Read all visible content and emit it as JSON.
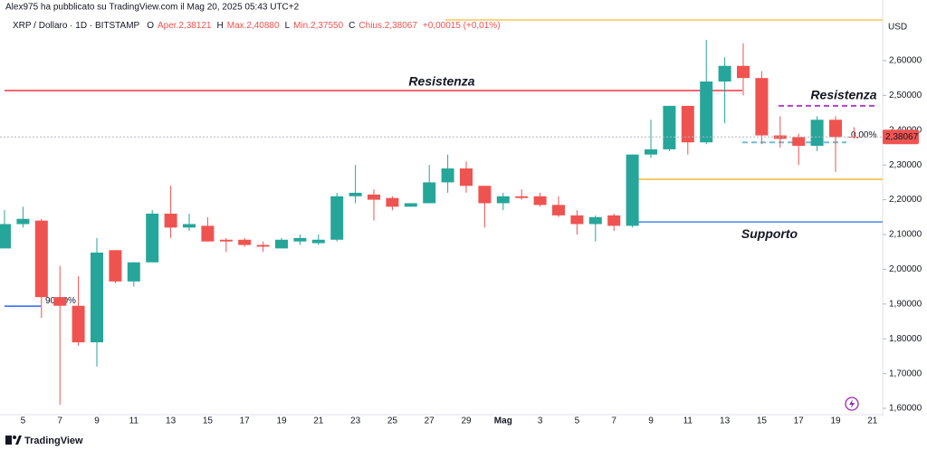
{
  "header": {
    "byline": "Alex975 ha pubblicato su TradingView.com il Mag 20, 2025 05:43 UTC+2",
    "symbol": "XRP / Dollaro · 1D · BITSTAMP",
    "open": "Aper.2,38121",
    "high": "Max.2,40880",
    "low": "Min.2,37550",
    "close": "Chius.2,38067",
    "change": "+0,00015 (+0,01%)",
    "o": "O",
    "h": "H",
    "l": "L",
    "c": "C"
  },
  "footer": {
    "brand": "TradingView"
  },
  "chart_data": {
    "type": "candlestick",
    "y_axis_label": "USD",
    "up_color": "#26a69a",
    "down_color": "#ef5350",
    "categories": [
      null,
      "5",
      null,
      "7",
      null,
      "9",
      null,
      "11",
      null,
      "13",
      null,
      "15",
      null,
      "17",
      null,
      "19",
      null,
      "21",
      null,
      "23",
      null,
      "25",
      null,
      "27",
      null,
      "29",
      null,
      "Mag",
      null,
      "3",
      null,
      "5",
      null,
      "7",
      null,
      "9",
      null,
      "11",
      null,
      "13",
      null,
      "15",
      null,
      "17",
      null,
      "19",
      null,
      "21"
    ],
    "open": [
      2.06,
      2.13,
      2.14,
      1.92,
      1.895,
      1.79,
      2.055,
      1.965,
      2.02,
      2.16,
      2.12,
      2.125,
      2.085,
      2.085,
      2.07,
      2.06,
      2.08,
      2.075,
      2.085,
      2.21,
      2.215,
      2.205,
      2.18,
      2.19,
      2.25,
      2.29,
      2.24,
      2.19,
      2.21,
      2.21,
      2.185,
      2.155,
      2.13,
      2.155,
      2.125,
      2.33,
      2.345,
      2.47,
      2.365,
      2.54,
      2.585,
      2.55,
      2.385,
      2.38,
      2.355,
      2.43,
      2.38121,
      null
    ],
    "high": [
      2.17,
      2.18,
      2.145,
      2.01,
      1.98,
      2.09,
      2.055,
      2.02,
      2.17,
      2.24,
      2.16,
      2.15,
      2.09,
      2.09,
      2.08,
      2.09,
      2.1,
      2.1,
      2.22,
      2.3,
      2.23,
      2.21,
      2.19,
      2.3,
      2.33,
      2.31,
      2.24,
      2.22,
      2.23,
      2.22,
      2.21,
      2.17,
      2.155,
      2.16,
      2.33,
      2.43,
      2.47,
      2.47,
      2.66,
      2.61,
      2.65,
      2.57,
      2.44,
      2.39,
      2.44,
      2.44,
      2.4088,
      null
    ],
    "low": [
      2.06,
      2.12,
      1.86,
      1.61,
      1.78,
      1.72,
      1.96,
      1.95,
      2.02,
      2.09,
      2.11,
      2.08,
      2.05,
      2.065,
      2.05,
      2.06,
      2.07,
      2.07,
      2.08,
      2.19,
      2.14,
      2.17,
      2.18,
      2.19,
      2.22,
      2.22,
      2.12,
      2.17,
      2.2,
      2.18,
      2.15,
      2.1,
      2.08,
      2.11,
      2.12,
      2.32,
      2.34,
      2.33,
      2.36,
      2.42,
      2.5,
      2.36,
      2.35,
      2.3,
      2.34,
      2.28,
      2.3755,
      null
    ],
    "close": [
      2.13,
      2.145,
      1.92,
      1.895,
      1.79,
      2.048,
      1.965,
      2.02,
      2.16,
      2.12,
      2.13,
      2.08,
      2.08,
      2.07,
      2.065,
      2.085,
      2.09,
      2.085,
      2.21,
      2.22,
      2.2,
      2.18,
      2.19,
      2.25,
      2.29,
      2.24,
      2.19,
      2.21,
      2.205,
      2.185,
      2.155,
      2.13,
      2.15,
      2.125,
      2.33,
      2.345,
      2.47,
      2.365,
      2.54,
      2.585,
      2.55,
      2.385,
      2.375,
      2.355,
      2.43,
      2.38,
      2.38067,
      null
    ],
    "last_label": "2,38067",
    "ylim": [
      1.58,
      2.72
    ],
    "yticks": [
      {
        "value": 1.6,
        "label": "1,60000"
      },
      {
        "value": 1.7,
        "label": "1,70000"
      },
      {
        "value": 1.8,
        "label": "1,80000"
      },
      {
        "value": 1.9,
        "label": "1,90000"
      },
      {
        "value": 2.0,
        "label": "2,00000"
      },
      {
        "value": 2.1,
        "label": "2,10000"
      },
      {
        "value": 2.2,
        "label": "2,20000"
      },
      {
        "value": 2.3,
        "label": "2,30000"
      },
      {
        "value": 2.4,
        "label": "2,40000"
      },
      {
        "value": 2.5,
        "label": "2,50000"
      },
      {
        "value": 2.6,
        "label": "2,60000"
      }
    ],
    "lines": [
      {
        "value": 2.717,
        "color": "#f7c85a"
      },
      {
        "value": 2.514,
        "color": "#f23645",
        "label": "Resistenza"
      },
      {
        "value": 2.47,
        "color": "#b042c4",
        "label": "Resistenza",
        "dashed": true
      },
      {
        "value": 2.259,
        "color": "#f0b93a"
      },
      {
        "value": 2.136,
        "color": "#4a86e0",
        "label": "Supporto"
      },
      {
        "value": 1.894,
        "color": "#2962ff",
        "label": "90,00%"
      },
      {
        "value": 2.365,
        "color": "#74b9d6",
        "label": "0,00%",
        "dashed": true
      }
    ]
  }
}
